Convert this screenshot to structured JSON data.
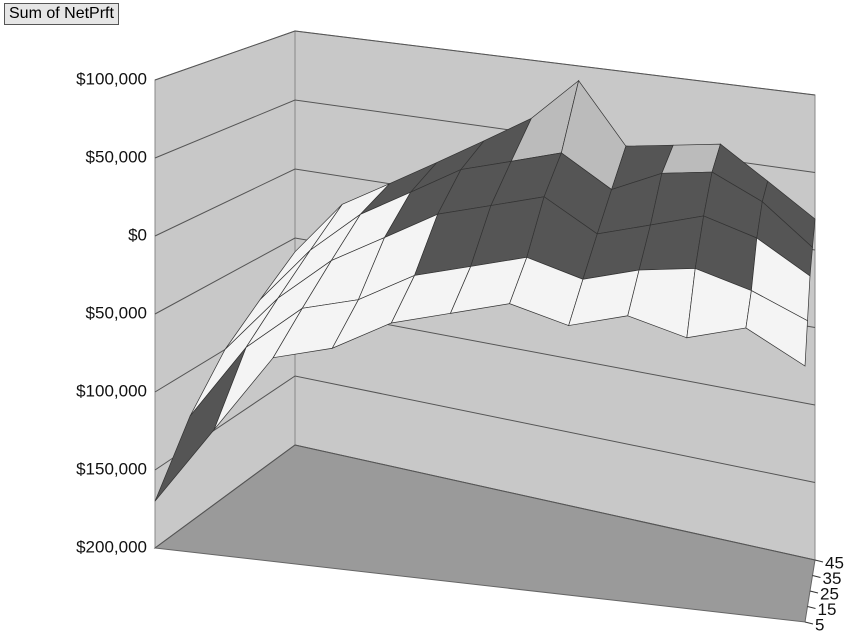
{
  "chart_data": {
    "type": "surface",
    "title": "Sum of NetPrft",
    "categories": [
      null,
      null,
      null,
      null,
      null,
      null,
      null,
      null,
      null,
      null,
      null,
      null
    ],
    "series": [
      {
        "name": "5",
        "values": [
          -170000,
          -120000,
          -70000,
          -60000,
          -40000,
          -30000,
          -20000,
          -30000,
          -20000,
          -30000,
          -20000,
          -40000
        ]
      },
      {
        "name": "15",
        "values": [
          -130000,
          -80000,
          -50000,
          -40000,
          -20000,
          -10000,
          0,
          -10000,
          0,
          5000,
          -5000,
          -20000
        ]
      },
      {
        "name": "25",
        "values": [
          -100000,
          -60000,
          -30000,
          -10000,
          10000,
          20000,
          30000,
          10000,
          20000,
          30000,
          20000,
          0
        ]
      },
      {
        "name": "35",
        "values": [
          -80000,
          -40000,
          -10000,
          10000,
          30000,
          40000,
          50000,
          30000,
          45000,
          50000,
          35000,
          10000
        ]
      },
      {
        "name": "45",
        "values": [
          -60000,
          -20000,
          0,
          20000,
          40000,
          60000,
          90000,
          50000,
          55000,
          60000,
          40000,
          20000
        ]
      }
    ],
    "ylim": [
      -200000,
      100000
    ],
    "yticks": [
      {
        "value": -200000,
        "label": "$200,000"
      },
      {
        "value": -150000,
        "label": "$150,000"
      },
      {
        "value": -100000,
        "label": "$100,000"
      },
      {
        "value": -50000,
        "label": "$50,000"
      },
      {
        "value": 0,
        "label": "$0"
      },
      {
        "value": 50000,
        "label": "$50,000"
      },
      {
        "value": 100000,
        "label": "$100,000"
      }
    ],
    "band_colors": [
      "#555555",
      "#555555",
      "#f4f4f4",
      "#f4f4f4",
      "#555555",
      "#bbbbbb"
    ],
    "wall_color": "#c8c8c8",
    "floor_color": "#9a9a9a",
    "grid": true
  }
}
